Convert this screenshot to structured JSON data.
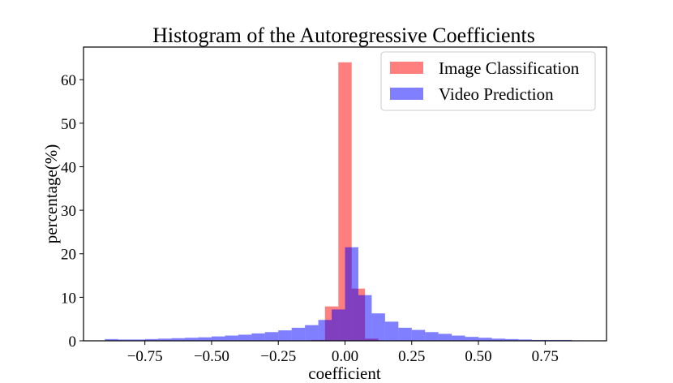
{
  "chart_data": {
    "type": "bar",
    "title": "Histogram of the Autoregressive Coefficients",
    "xlabel": "coefficient",
    "ylabel": "percentage(%)",
    "xlim": [
      -0.98,
      0.98
    ],
    "ylim": [
      0,
      67.5
    ],
    "bin_width": 0.05,
    "x_ticks": [
      -0.75,
      -0.5,
      -0.25,
      0.0,
      0.25,
      0.5,
      0.75
    ],
    "x_tick_labels": [
      "−0.75",
      "−0.50",
      "−0.25",
      "0.00",
      "0.25",
      "0.50",
      "0.75"
    ],
    "y_ticks": [
      0,
      10,
      20,
      30,
      40,
      50,
      60
    ],
    "y_tick_labels": [
      "0",
      "10",
      "20",
      "30",
      "40",
      "50",
      "60"
    ],
    "grid": false,
    "legend_position": "top-right",
    "series": [
      {
        "name": "Image Classification",
        "color": "#ff0000",
        "alpha": 0.5,
        "bin_edges": [
          -0.125,
          -0.075,
          -0.025,
          0.025,
          0.075,
          0.125
        ],
        "values": [
          0.2,
          7.9,
          64.0,
          12.0,
          0.5
        ]
      },
      {
        "name": "Video Prediction",
        "color": "#0000ff",
        "alpha": 0.5,
        "bin_edges": [
          -0.9,
          -0.85,
          -0.8,
          -0.75,
          -0.7,
          -0.65,
          -0.6,
          -0.55,
          -0.5,
          -0.45,
          -0.4,
          -0.35,
          -0.3,
          -0.25,
          -0.2,
          -0.15,
          -0.1,
          -0.05,
          0.0,
          0.05,
          0.1,
          0.15,
          0.2,
          0.25,
          0.3,
          0.35,
          0.4,
          0.45,
          0.5,
          0.55,
          0.6,
          0.65,
          0.7,
          0.75,
          0.8,
          0.85,
          0.9
        ],
        "values": [
          0.4,
          0.3,
          0.3,
          0.4,
          0.5,
          0.6,
          0.7,
          0.8,
          1.0,
          1.2,
          1.4,
          1.7,
          2.0,
          2.4,
          3.0,
          3.6,
          4.8,
          7.2,
          21.5,
          10.5,
          6.3,
          4.4,
          3.0,
          2.5,
          2.0,
          1.6,
          1.2,
          0.9,
          0.7,
          0.5,
          0.4,
          0.3,
          0.2,
          0.2,
          0.2,
          0.1
        ]
      }
    ]
  }
}
